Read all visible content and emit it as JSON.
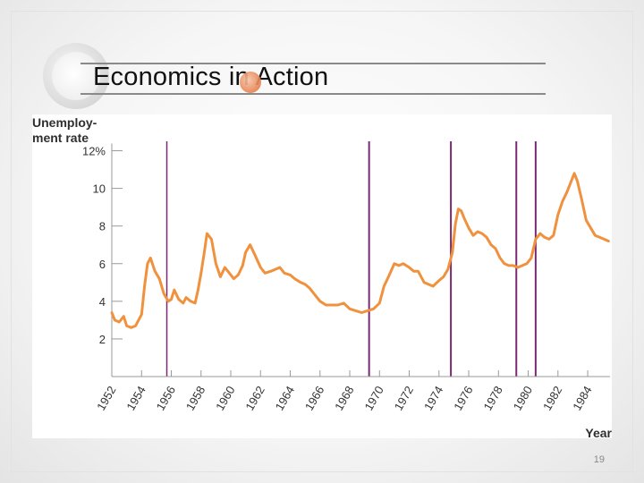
{
  "slide": {
    "title": "Economics in Action",
    "page_number": "19"
  },
  "colors": {
    "line": "#f0913d",
    "recession_line": "#7a2a72",
    "axis": "#9a9a9a",
    "label": "#333333"
  },
  "chart_data": {
    "type": "line",
    "title": "",
    "ylabel_line1": "Unemploy-",
    "ylabel_line2": "ment rate",
    "xlabel": "Year",
    "xlim": [
      1952,
      1985.5
    ],
    "ylim": [
      0,
      12.5
    ],
    "y_ticks": [
      2,
      4,
      6,
      8,
      10,
      12
    ],
    "y_tick_labels": [
      "2",
      "4",
      "6",
      "8",
      "10",
      "12%"
    ],
    "x_ticks": [
      1952,
      1954,
      1956,
      1958,
      1960,
      1962,
      1964,
      1966,
      1968,
      1970,
      1972,
      1974,
      1976,
      1978,
      1980,
      1982,
      1984
    ],
    "x_tick_labels": [
      "1952",
      "1954",
      "1956",
      "1958",
      "1960",
      "1962",
      "1964",
      "1966",
      "1968",
      "1970",
      "1972",
      "1974",
      "1976",
      "1978",
      "1980",
      "1982",
      "1984"
    ],
    "recession_lines": [
      1955.7,
      1969.3,
      1974.8,
      1979.2,
      1980.5
    ],
    "series": [
      {
        "name": "Unemployment rate",
        "x": [
          1952.0,
          1952.2,
          1952.5,
          1952.8,
          1953.0,
          1953.3,
          1953.6,
          1954.0,
          1954.2,
          1954.4,
          1954.6,
          1954.9,
          1955.2,
          1955.5,
          1955.8,
          1956.0,
          1956.2,
          1956.5,
          1956.8,
          1957.0,
          1957.3,
          1957.6,
          1957.8,
          1958.0,
          1958.2,
          1958.4,
          1958.7,
          1959.0,
          1959.3,
          1959.6,
          1959.9,
          1960.2,
          1960.5,
          1960.8,
          1961.0,
          1961.3,
          1961.6,
          1962.0,
          1962.3,
          1962.7,
          1963.0,
          1963.3,
          1963.6,
          1964.0,
          1964.3,
          1964.7,
          1965.0,
          1965.3,
          1965.6,
          1966.0,
          1966.4,
          1966.8,
          1967.2,
          1967.6,
          1968.0,
          1968.4,
          1968.8,
          1969.2,
          1969.6,
          1970.0,
          1970.3,
          1970.6,
          1971.0,
          1971.3,
          1971.6,
          1972.0,
          1972.3,
          1972.6,
          1973.0,
          1973.3,
          1973.6,
          1974.0,
          1974.3,
          1974.6,
          1974.9,
          1975.1,
          1975.3,
          1975.5,
          1975.7,
          1976.0,
          1976.3,
          1976.6,
          1976.9,
          1977.2,
          1977.5,
          1977.8,
          1978.1,
          1978.4,
          1978.7,
          1979.0,
          1979.3,
          1979.6,
          1979.9,
          1980.2,
          1980.5,
          1980.8,
          1981.1,
          1981.4,
          1981.7,
          1982.0,
          1982.3,
          1982.6,
          1982.9,
          1983.1,
          1983.3,
          1983.6,
          1983.9,
          1984.2,
          1984.5,
          1984.8,
          1985.1,
          1985.4
        ],
        "y": [
          3.4,
          3.0,
          2.9,
          3.2,
          2.7,
          2.6,
          2.7,
          3.3,
          4.8,
          6.0,
          6.3,
          5.6,
          5.2,
          4.4,
          4.0,
          4.1,
          4.6,
          4.1,
          3.9,
          4.2,
          4.0,
          3.9,
          4.6,
          5.5,
          6.5,
          7.6,
          7.3,
          6.0,
          5.3,
          5.8,
          5.5,
          5.2,
          5.4,
          5.9,
          6.6,
          7.0,
          6.5,
          5.8,
          5.5,
          5.6,
          5.7,
          5.8,
          5.5,
          5.4,
          5.2,
          5.0,
          4.9,
          4.7,
          4.4,
          4.0,
          3.8,
          3.8,
          3.8,
          3.9,
          3.6,
          3.5,
          3.4,
          3.5,
          3.6,
          3.9,
          4.8,
          5.3,
          6.0,
          5.9,
          6.0,
          5.8,
          5.6,
          5.6,
          5.0,
          4.9,
          4.8,
          5.1,
          5.3,
          5.7,
          6.6,
          8.1,
          8.9,
          8.8,
          8.4,
          7.9,
          7.5,
          7.7,
          7.6,
          7.4,
          7.0,
          6.8,
          6.3,
          6.0,
          5.9,
          5.9,
          5.8,
          5.9,
          6.0,
          6.3,
          7.3,
          7.6,
          7.4,
          7.3,
          7.5,
          8.6,
          9.3,
          9.8,
          10.4,
          10.8,
          10.4,
          9.4,
          8.3,
          7.9,
          7.5,
          7.4,
          7.3,
          7.2
        ]
      }
    ]
  }
}
